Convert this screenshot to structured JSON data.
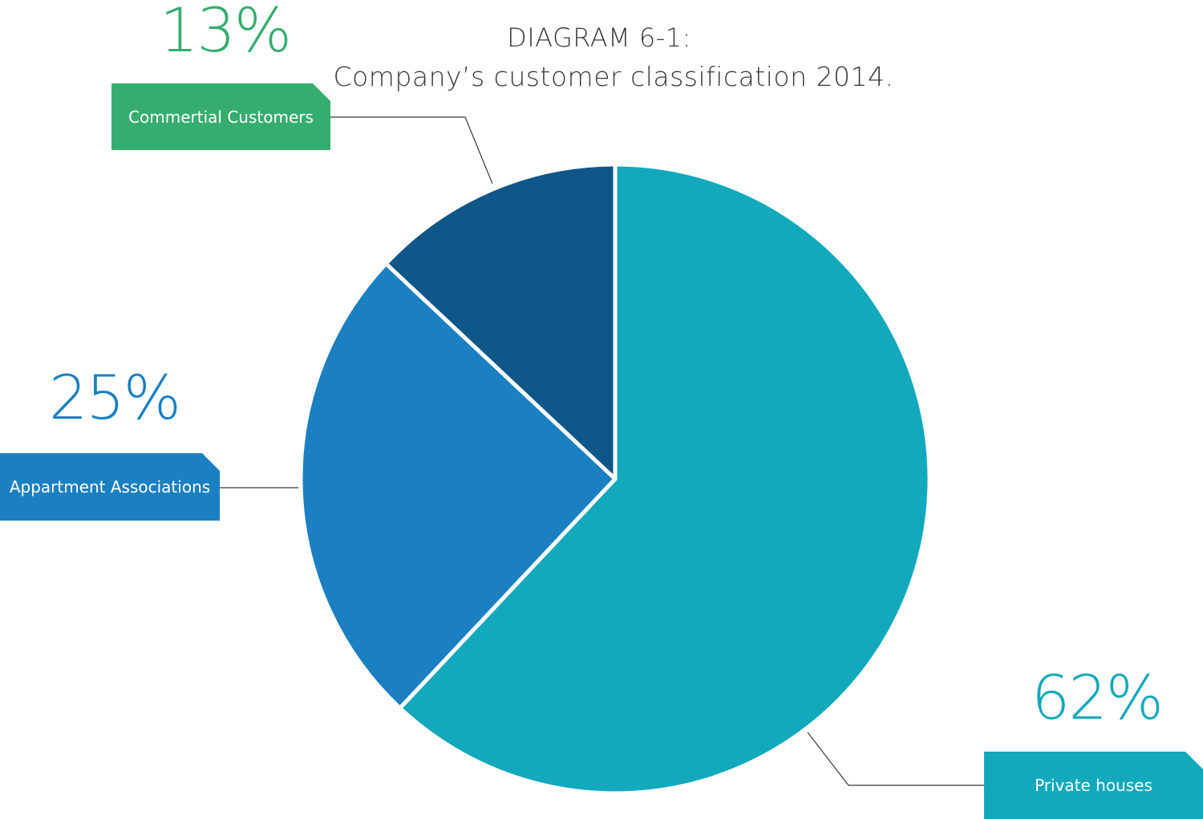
{
  "title": {
    "line1": "DIAGRAM 6-1:",
    "line2": "Company’s customer classification 2014."
  },
  "labels": {
    "commercial": {
      "pct": "13%",
      "tag": "Commertial Customers"
    },
    "apartment": {
      "pct": "25%",
      "tag": "Appartment Associations"
    },
    "private": {
      "pct": "62%",
      "tag": "Private houses"
    }
  },
  "colors": {
    "private": "#12a9bd",
    "apartment": "#1b80c1",
    "commercial": "#0f5689",
    "commercial_label": "#35ad6e",
    "leader_line": "#3a3a3a"
  },
  "chart_data": {
    "type": "pie",
    "title": "Company’s customer classification 2014.",
    "start": "12 o'clock, clockwise",
    "slices": [
      {
        "label": "Private houses",
        "value": 62,
        "color": "#12a9bd"
      },
      {
        "label": "Appartment Associations",
        "value": 25,
        "color": "#1b80c1"
      },
      {
        "label": "Commertial Customers",
        "value": 13,
        "color": "#0f5689"
      }
    ]
  }
}
